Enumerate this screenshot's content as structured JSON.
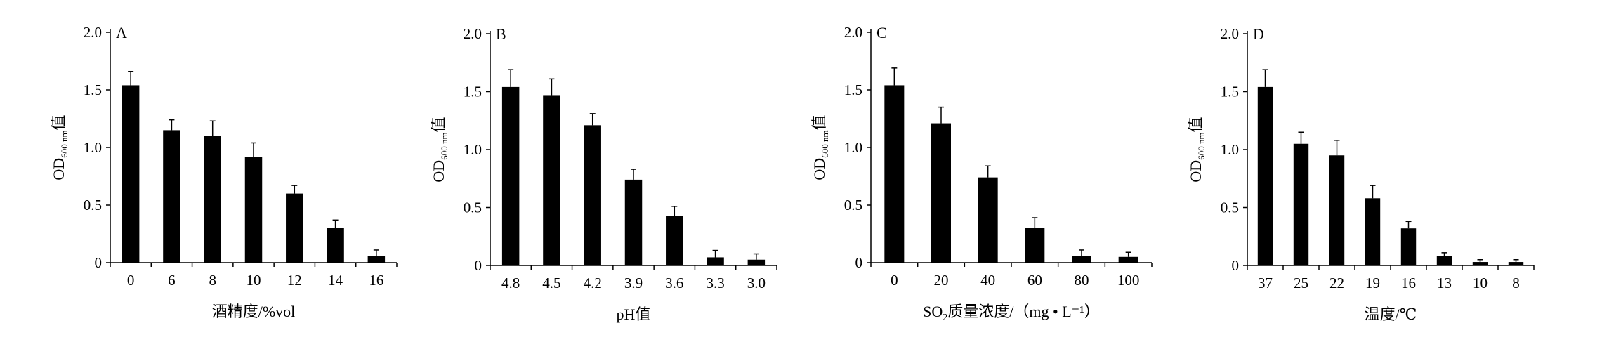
{
  "chart_data": [
    {
      "type": "bar",
      "panel": "A",
      "categories": [
        "0",
        "6",
        "8",
        "10",
        "12",
        "14",
        "16"
      ],
      "values": [
        1.54,
        1.15,
        1.1,
        0.92,
        0.6,
        0.3,
        0.06
      ],
      "errors": [
        0.12,
        0.09,
        0.13,
        0.12,
        0.07,
        0.07,
        0.05
      ],
      "ylim": [
        0,
        2.0
      ],
      "yticks": [
        "0",
        "0.5",
        "1.0",
        "1.5",
        "2.0"
      ],
      "ylabel": {
        "main": "OD",
        "sub": "600 nm",
        "suffix": "值"
      },
      "xlabel": {
        "before": "酒精度/%vol",
        "sub": "",
        "after": ""
      },
      "color": "#000000"
    },
    {
      "type": "bar",
      "panel": "B",
      "categories": [
        "4.8",
        "4.5",
        "4.2",
        "3.9",
        "3.6",
        "3.3",
        "3.0"
      ],
      "values": [
        1.54,
        1.47,
        1.21,
        0.74,
        0.43,
        0.07,
        0.05
      ],
      "errors": [
        0.15,
        0.14,
        0.1,
        0.09,
        0.08,
        0.06,
        0.05
      ],
      "ylim": [
        0,
        2.0
      ],
      "yticks": [
        "0",
        "0.5",
        "1.0",
        "1.5",
        "2.0"
      ],
      "ylabel": {
        "main": "OD",
        "sub": "600 nm",
        "suffix": "值"
      },
      "xlabel": {
        "before": "pH值",
        "sub": "",
        "after": ""
      },
      "color": "#000000"
    },
    {
      "type": "bar",
      "panel": "C",
      "categories": [
        "0",
        "20",
        "40",
        "60",
        "80",
        "100"
      ],
      "values": [
        1.54,
        1.21,
        0.74,
        0.3,
        0.06,
        0.05
      ],
      "errors": [
        0.15,
        0.14,
        0.1,
        0.09,
        0.05,
        0.04
      ],
      "ylim": [
        0,
        2.0
      ],
      "yticks": [
        "0",
        "0.5",
        "1.0",
        "1.5",
        "2.0"
      ],
      "ylabel": {
        "main": "OD",
        "sub": "600 nm",
        "suffix": "值"
      },
      "xlabel": {
        "before": "SO",
        "sub": "2",
        "after": "质量浓度/（mg • L⁻¹）"
      },
      "color": "#000000"
    },
    {
      "type": "bar",
      "panel": "D",
      "categories": [
        "37",
        "25",
        "22",
        "19",
        "16",
        "13",
        "10",
        "8"
      ],
      "values": [
        1.54,
        1.05,
        0.95,
        0.58,
        0.32,
        0.08,
        0.03,
        0.03
      ],
      "errors": [
        0.15,
        0.1,
        0.13,
        0.11,
        0.06,
        0.03,
        0.02,
        0.02
      ],
      "ylim": [
        0,
        2.0
      ],
      "yticks": [
        "0",
        "0.5",
        "1.0",
        "1.5",
        "2.0"
      ],
      "ylabel": {
        "main": "OD",
        "sub": "600 nm",
        "suffix": "值"
      },
      "xlabel": {
        "before": "温度/℃",
        "sub": "",
        "after": ""
      },
      "color": "#000000"
    }
  ]
}
